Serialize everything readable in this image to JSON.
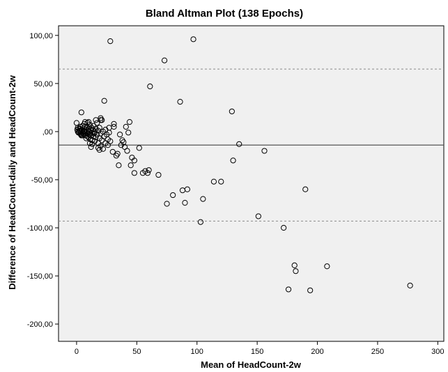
{
  "chart_data": {
    "type": "scatter",
    "title": "Bland Altman Plot (138 Epochs)",
    "xlabel": "Mean of HeadCount-2w",
    "ylabel": "Difference of HeadCount-daily and HeadCount-2w",
    "xlim": [
      -15,
      305
    ],
    "ylim": [
      -218,
      110
    ],
    "xticks": [
      0,
      50,
      100,
      150,
      200,
      250,
      300
    ],
    "xtick_labels": [
      "0",
      "50",
      "100",
      "150",
      "200",
      "250",
      "300"
    ],
    "yticks": [
      100,
      50,
      0,
      -50,
      -100,
      -150,
      -200
    ],
    "ytick_labels": [
      "100,00",
      "50,00",
      ",00",
      "-50,00",
      "-100,00",
      "-150,00",
      "-200,00"
    ],
    "grid": false,
    "reference_lines": {
      "mean_difference": -14,
      "upper_limit": 65,
      "lower_limit": -93
    },
    "colors": {
      "background": "#f0f0f0",
      "points": "#000000",
      "mean_line": "#555555",
      "limit_lines": "#888888"
    },
    "points": [
      [
        0,
        9
      ],
      [
        0.5,
        2
      ],
      [
        1,
        0
      ],
      [
        1.5,
        -1
      ],
      [
        2,
        3
      ],
      [
        2.5,
        1
      ],
      [
        3,
        -2
      ],
      [
        3,
        5
      ],
      [
        3.5,
        -3
      ],
      [
        4,
        0
      ],
      [
        4,
        -4
      ],
      [
        4.5,
        2
      ],
      [
        5,
        -1
      ],
      [
        5,
        6
      ],
      [
        5.5,
        -2
      ],
      [
        6,
        1
      ],
      [
        6,
        -3
      ],
      [
        6.5,
        8
      ],
      [
        7,
        0
      ],
      [
        7,
        10
      ],
      [
        7.5,
        -4
      ],
      [
        8,
        2
      ],
      [
        8,
        -1
      ],
      [
        8.5,
        5
      ],
      [
        9,
        -5
      ],
      [
        9,
        1
      ],
      [
        9.5,
        -2
      ],
      [
        10,
        3
      ],
      [
        10,
        -6
      ],
      [
        10.5,
        0
      ],
      [
        11,
        -3
      ],
      [
        11,
        7
      ],
      [
        11.5,
        -8
      ],
      [
        12,
        1
      ],
      [
        12,
        -4
      ],
      [
        12.5,
        4
      ],
      [
        13,
        -1
      ],
      [
        13,
        -9
      ],
      [
        13.5,
        2
      ],
      [
        14,
        -5
      ],
      [
        14,
        6
      ],
      [
        14.5,
        -2
      ],
      [
        15,
        0
      ],
      [
        15,
        -10
      ],
      [
        16,
        3
      ],
      [
        16,
        -6
      ],
      [
        17,
        -3
      ],
      [
        17,
        9
      ],
      [
        18,
        1
      ],
      [
        18,
        -12
      ],
      [
        19,
        -7
      ],
      [
        19,
        4
      ],
      [
        20,
        -2
      ],
      [
        20,
        -15
      ],
      [
        21,
        12
      ],
      [
        21,
        -9
      ],
      [
        22,
        0
      ],
      [
        22,
        -18
      ],
      [
        23,
        -5
      ],
      [
        24,
        2
      ],
      [
        24,
        -12
      ],
      [
        25,
        -3
      ],
      [
        26,
        -14
      ],
      [
        26,
        -8
      ],
      [
        27,
        4
      ],
      [
        27,
        -1
      ],
      [
        4,
        20
      ],
      [
        5,
        -4
      ],
      [
        6,
        0
      ],
      [
        8,
        -7
      ],
      [
        20,
        14
      ],
      [
        20,
        12
      ],
      [
        16,
        12
      ],
      [
        7,
        5
      ],
      [
        3,
        3
      ],
      [
        2,
        -1
      ],
      [
        1,
        4
      ],
      [
        9,
        9
      ],
      [
        10,
        10
      ],
      [
        11,
        -12
      ],
      [
        13,
        -13
      ],
      [
        12,
        -16
      ],
      [
        18,
        -17
      ],
      [
        19,
        -19
      ],
      [
        23,
        32
      ],
      [
        28,
        -10
      ],
      [
        30,
        -21
      ],
      [
        31,
        5
      ],
      [
        31,
        8
      ],
      [
        33,
        -25
      ],
      [
        34,
        -23
      ],
      [
        35,
        -35
      ],
      [
        36,
        -3
      ],
      [
        37,
        -14
      ],
      [
        38,
        -9
      ],
      [
        39,
        -11
      ],
      [
        40,
        -16
      ],
      [
        41,
        5
      ],
      [
        42,
        -20
      ],
      [
        43,
        -1
      ],
      [
        44,
        10
      ],
      [
        45,
        -35
      ],
      [
        46,
        -27
      ],
      [
        48,
        -30
      ],
      [
        48,
        -43
      ],
      [
        52,
        -17
      ],
      [
        55,
        -43
      ],
      [
        57,
        -41
      ],
      [
        59,
        -43
      ],
      [
        60,
        -40
      ],
      [
        28,
        94
      ],
      [
        61,
        47
      ],
      [
        68,
        -45
      ],
      [
        73,
        74
      ],
      [
        75,
        -75
      ],
      [
        80,
        -66
      ],
      [
        86,
        31
      ],
      [
        88,
        -61
      ],
      [
        90,
        -74
      ],
      [
        92,
        -60
      ],
      [
        97,
        96
      ],
      [
        103,
        -94
      ],
      [
        105,
        -70
      ],
      [
        114,
        -52
      ],
      [
        120,
        -52
      ],
      [
        129,
        21
      ],
      [
        130,
        -30
      ],
      [
        135,
        -13
      ],
      [
        151,
        -88
      ],
      [
        156,
        -20
      ],
      [
        172,
        -100
      ],
      [
        176,
        -164
      ],
      [
        181,
        -139
      ],
      [
        182,
        -145
      ],
      [
        190,
        -60
      ],
      [
        194,
        -165
      ],
      [
        208,
        -140
      ],
      [
        277,
        -160
      ]
    ]
  }
}
